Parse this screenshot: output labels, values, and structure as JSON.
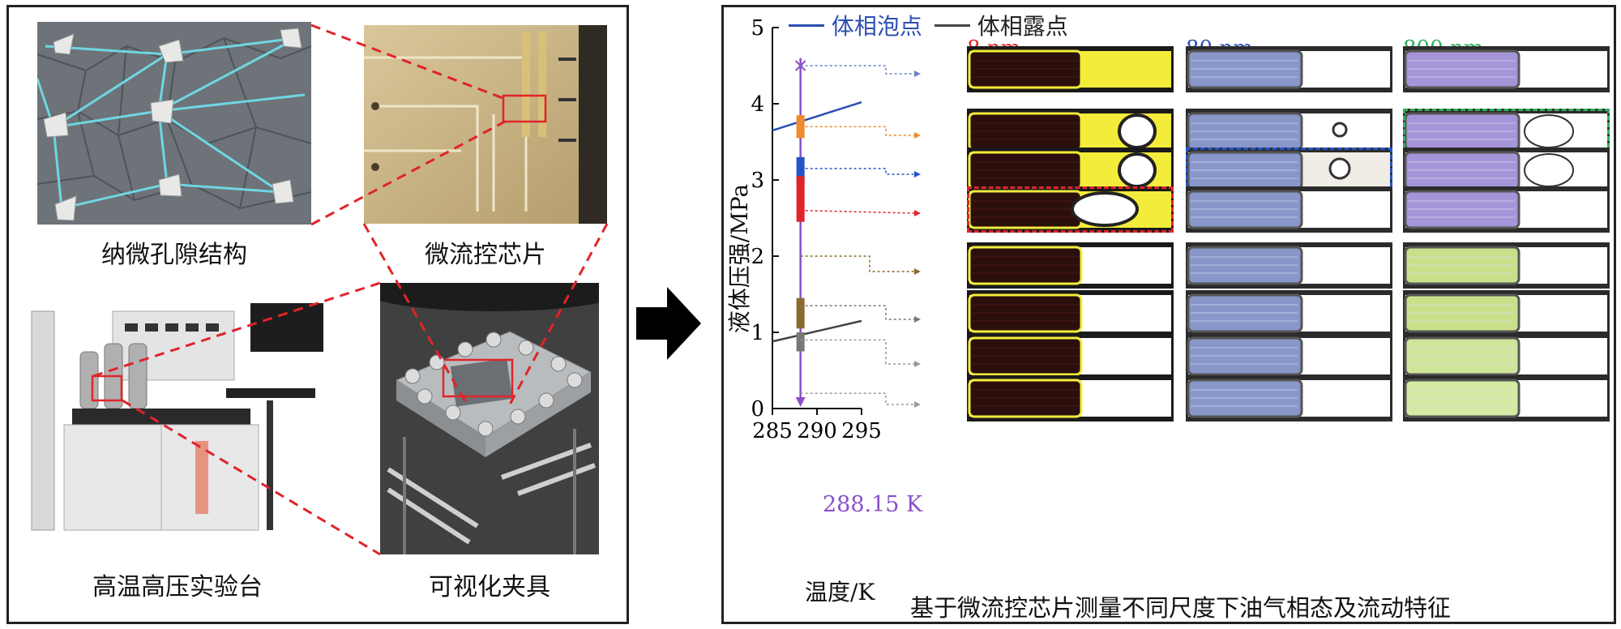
{
  "left_panel": {
    "captions": {
      "nano_pore": "纳微孔隙结构",
      "microfluidic_chip": "微流控芯片",
      "test_bench": "高温高压实验台",
      "fixture": "可视化夹具"
    }
  },
  "right_panel": {
    "legend": {
      "bubble": "体相泡点",
      "dew": "体相露点"
    },
    "columns": {
      "nm8": "8 nm",
      "nm80": "80 nm",
      "nm800": "800 nm"
    },
    "temperature_marker": "288.15 K",
    "caption": "基于微流控芯片测量不同尺度下油气相态及流动特征"
  },
  "chart_data": {
    "type": "line",
    "xlabel": "温度/K",
    "ylabel": "液体压强/MPa",
    "xlim": [
      285,
      295
    ],
    "ylim": [
      0,
      5
    ],
    "xticks": [
      "285",
      "290",
      "295"
    ],
    "yticks": [
      "0",
      "1",
      "2",
      "3",
      "4",
      "5"
    ],
    "series": [
      {
        "name": "体相泡点",
        "color": "#2b4fb3",
        "x": [
          285,
          295
        ],
        "y": [
          3.65,
          4.02
        ]
      },
      {
        "name": "体相露点",
        "color": "#444444",
        "x": [
          285,
          295
        ],
        "y": [
          0.88,
          1.15
        ]
      }
    ],
    "vertical_marker": {
      "x": 288.15,
      "label": "288.15 K",
      "color": "#8a4fc9"
    },
    "pressure_levels_mpa": [
      4.5,
      3.7,
      3.15,
      2.6,
      2.0,
      1.35,
      0.9,
      0.2
    ],
    "segments": [
      {
        "color": "#f08a2a",
        "y": [
          3.55,
          3.85
        ]
      },
      {
        "color": "#2354c8",
        "y": [
          2.95,
          3.3
        ]
      },
      {
        "color": "#e0242a",
        "y": [
          2.45,
          3.05
        ]
      },
      {
        "color": "#8a6a2a",
        "y": [
          1.05,
          1.45
        ]
      },
      {
        "color": "#777777",
        "y": [
          0.75,
          1.0
        ]
      }
    ]
  }
}
